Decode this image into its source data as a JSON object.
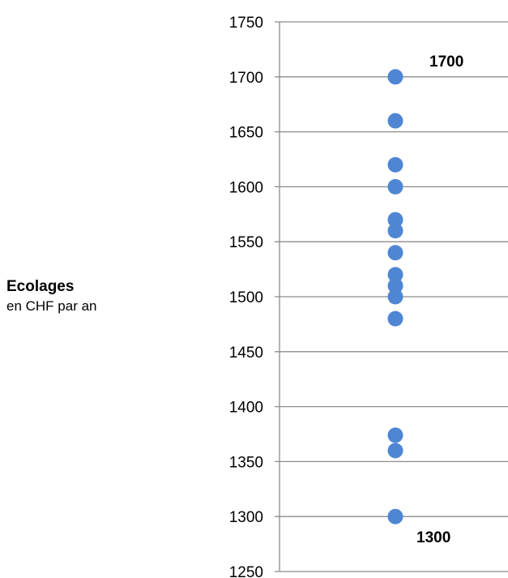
{
  "chart_data": {
    "type": "scatter",
    "ylabel_title": "Ecolages",
    "ylabel_subtitle": "en CHF par an",
    "ylim": [
      1250,
      1750
    ],
    "yticks": [
      1250,
      1300,
      1350,
      1400,
      1450,
      1500,
      1550,
      1600,
      1650,
      1700,
      1750
    ],
    "grid": true,
    "marker_color": "#4f86d3",
    "grid_color": "#8c8c8c",
    "values": [
      1700,
      1660,
      1620,
      1600,
      1570,
      1560,
      1540,
      1520,
      1510,
      1500,
      1480,
      1374,
      1360,
      1300
    ],
    "annotations": [
      {
        "value": 1700,
        "text": "1700"
      },
      {
        "value": 1300,
        "text": "1300"
      }
    ]
  }
}
